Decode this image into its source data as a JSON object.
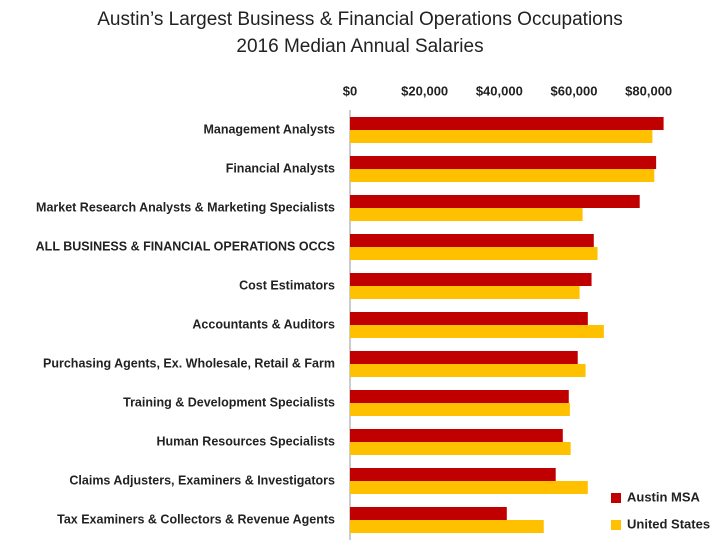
{
  "chart_data": {
    "type": "hbar",
    "title": "Austin’s Largest Business & Financial Operations Occupations",
    "subtitle": "2016 Median Annual Salaries",
    "categories": [
      "Management Analysts",
      "Financial Analysts",
      "Market Research Analysts & Marketing Specialists",
      "ALL BUSINESS & FINANCIAL OPERATIONS OCCS",
      "Cost Estimators",
      "Accountants & Auditors",
      "Purchasing Agents, Ex. Wholesale, Retail & Farm",
      "Training & Development Specialists",
      "Human Resources Specialists",
      "Claims Adjusters, Examiners & Investigators",
      "Tax Examiners & Collectors & Revenue Agents"
    ],
    "series": [
      {
        "name": "Austin MSA",
        "color": "#c00000",
        "values": [
          84000,
          82000,
          77600,
          65300,
          64700,
          63700,
          61000,
          58600,
          57000,
          55100,
          42000
        ]
      },
      {
        "name": "United States",
        "color": "#ffc000",
        "values": [
          81000,
          81500,
          62300,
          66300,
          61500,
          68000,
          63100,
          58900,
          59100,
          63700,
          51900
        ]
      }
    ],
    "xlim": [
      0,
      90000
    ],
    "xticks": [
      {
        "value": 0,
        "label": "$0"
      },
      {
        "value": 20000,
        "label": "$20,000"
      },
      {
        "value": 40000,
        "label": "$40,000"
      },
      {
        "value": 60000,
        "label": "$60,000"
      },
      {
        "value": 80000,
        "label": "$80,000"
      }
    ],
    "legend": "lower right"
  }
}
